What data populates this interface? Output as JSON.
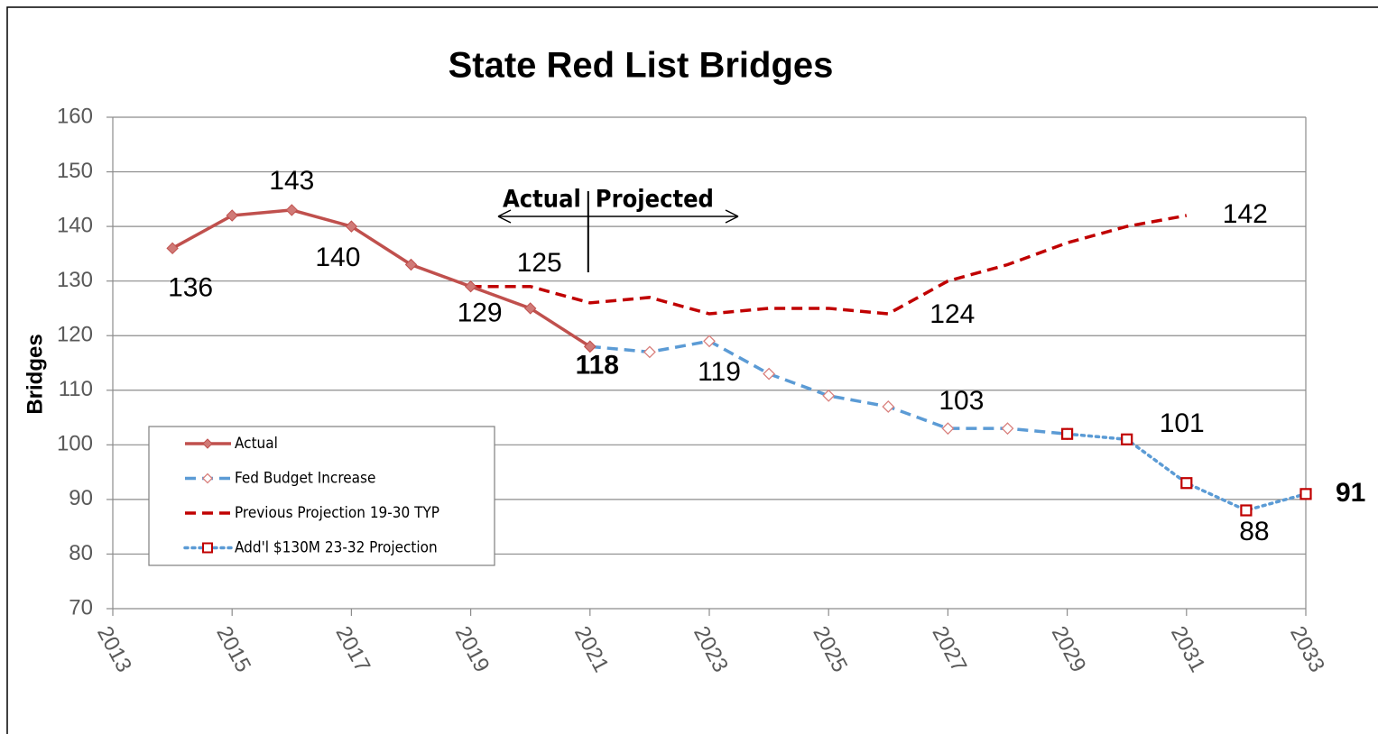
{
  "chart_data": {
    "type": "line",
    "title": "State Red List Bridges",
    "y_label": "Bridges",
    "xlim": [
      2013,
      2033
    ],
    "xticks": [
      2013,
      2015,
      2017,
      2019,
      2021,
      2023,
      2025,
      2027,
      2029,
      2031,
      2033
    ],
    "ylim": [
      70,
      160
    ],
    "yticks": [
      70,
      80,
      90,
      100,
      110,
      120,
      130,
      140,
      150,
      160
    ],
    "grid": true,
    "legend": "lower left",
    "annotations": [
      "Actual",
      "Projected"
    ],
    "series": [
      {
        "name": "Actual",
        "color": "#c0504d",
        "line": "solid",
        "marker": "diamond-filled",
        "x": [
          2014,
          2015,
          2016,
          2017,
          2018,
          2019,
          2020,
          2021
        ],
        "values": [
          136,
          142,
          143,
          140,
          133,
          129,
          125,
          118
        ],
        "value_labels": [
          "136",
          null,
          "143",
          "140",
          null,
          "129",
          "125",
          "118"
        ]
      },
      {
        "name": "Fed Budget Increase",
        "color": "#5b9bd5",
        "line": "dashed",
        "marker": "diamond-open",
        "x": [
          2021,
          2022,
          2023,
          2024,
          2025,
          2026,
          2027,
          2028,
          2029
        ],
        "values": [
          118,
          117,
          119,
          113,
          109,
          107,
          103,
          103,
          102
        ],
        "value_labels": [
          null,
          null,
          "119",
          null,
          null,
          null,
          "103",
          null,
          null
        ]
      },
      {
        "name": "Previous Projection 19-30 TYP",
        "color": "#c00000",
        "line": "dashed",
        "marker": "none",
        "x": [
          2019,
          2020,
          2021,
          2022,
          2023,
          2024,
          2025,
          2026,
          2027,
          2028,
          2029,
          2030,
          2031
        ],
        "values": [
          129,
          129,
          126,
          127,
          124,
          125,
          125,
          124,
          130,
          133,
          137,
          140,
          142
        ],
        "value_labels": [
          null,
          null,
          null,
          null,
          null,
          null,
          null,
          "124",
          null,
          null,
          null,
          null,
          "142"
        ]
      },
      {
        "name": "Add'l $130M 23-32 Projection",
        "color": "#5b9bd5",
        "line": "dotted",
        "marker": "square-open",
        "x": [
          2029,
          2030,
          2031,
          2032,
          2033
        ],
        "values": [
          102,
          101,
          93,
          88,
          91
        ],
        "value_labels": [
          null,
          "101",
          null,
          "88",
          "91"
        ]
      }
    ]
  }
}
